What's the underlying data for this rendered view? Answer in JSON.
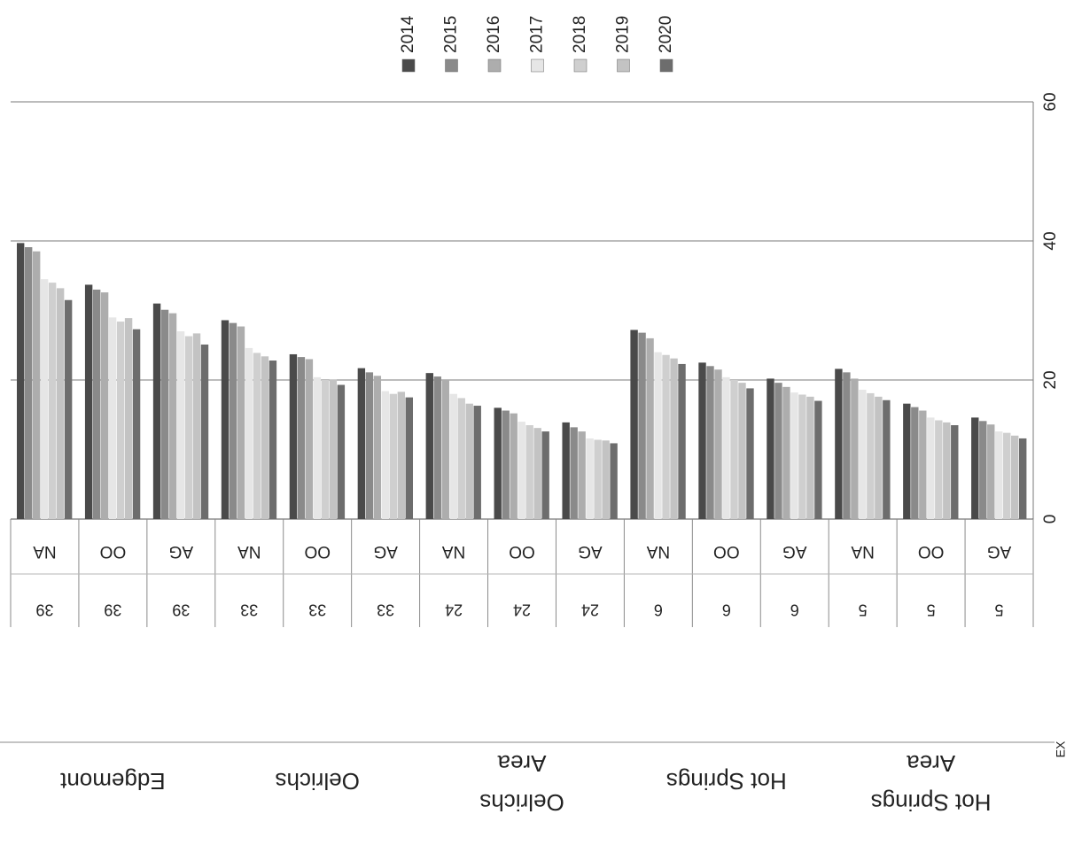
{
  "page_corner_text": "EX",
  "chart_data": {
    "type": "bar",
    "orientation": "vertical, image rotated 90 degrees",
    "title": "",
    "xlabel": "",
    "ylabel": "",
    "ylim": [
      0,
      60
    ],
    "y_ticks": [
      0,
      20,
      40,
      60
    ],
    "grid": true,
    "legend_placement": "top",
    "legend": [
      "2014",
      "2015",
      "2016",
      "2017",
      "2018",
      "2019",
      "2020"
    ],
    "colors": [
      "#4a4a4a",
      "#8a8a8a",
      "#adadad",
      "#e6e6e6",
      "#cfcfcf",
      "#c3c3c3",
      "#6d6d6d"
    ],
    "groups": [
      {
        "label": "Edgemont",
        "size": 3
      },
      {
        "label": "Oelrichs",
        "size": 3
      },
      {
        "label": "Oelrichs Area",
        "size": 3
      },
      {
        "label": "Hot Springs",
        "size": 3
      },
      {
        "label": "Hot Springs Area",
        "size": 3
      }
    ],
    "categories": [
      {
        "code": "NA",
        "value_label": "39"
      },
      {
        "code": "OO",
        "value_label": "39"
      },
      {
        "code": "AG",
        "value_label": "39"
      },
      {
        "code": "NA",
        "value_label": "33"
      },
      {
        "code": "OO",
        "value_label": "33"
      },
      {
        "code": "AG",
        "value_label": "33"
      },
      {
        "code": "NA",
        "value_label": "24"
      },
      {
        "code": "OO",
        "value_label": "24"
      },
      {
        "code": "AG",
        "value_label": "24"
      },
      {
        "code": "NA",
        "value_label": "6"
      },
      {
        "code": "OO",
        "value_label": "6"
      },
      {
        "code": "AG",
        "value_label": "6"
      },
      {
        "code": "NA",
        "value_label": "5"
      },
      {
        "code": "OO",
        "value_label": "5"
      },
      {
        "code": "AG",
        "value_label": "5"
      }
    ],
    "series": [
      {
        "name": "2014",
        "values": [
          39.7,
          33.7,
          31.0,
          28.6,
          23.7,
          21.7,
          21.0,
          16.0,
          13.9,
          27.2,
          22.5,
          20.2,
          21.6,
          16.6,
          14.6
        ]
      },
      {
        "name": "2015",
        "values": [
          39.1,
          33.0,
          30.1,
          28.2,
          23.3,
          21.1,
          20.5,
          15.6,
          13.2,
          26.8,
          22.0,
          19.6,
          21.1,
          16.1,
          14.1
        ]
      },
      {
        "name": "2016",
        "values": [
          38.5,
          32.6,
          29.6,
          27.7,
          23.0,
          20.6,
          20.0,
          15.2,
          12.6,
          26.0,
          21.5,
          19.0,
          20.2,
          15.6,
          13.6
        ]
      },
      {
        "name": "2017",
        "values": [
          34.5,
          29.0,
          27.0,
          24.6,
          20.4,
          18.4,
          18.0,
          14.0,
          11.6,
          24.0,
          20.4,
          18.2,
          18.6,
          14.6,
          12.6
        ]
      },
      {
        "name": "2018",
        "values": [
          34.0,
          28.4,
          26.3,
          23.9,
          20.0,
          18.0,
          17.4,
          13.5,
          11.4,
          23.6,
          20.0,
          17.9,
          18.1,
          14.2,
          12.4
        ]
      },
      {
        "name": "2019",
        "values": [
          33.2,
          28.9,
          26.7,
          23.4,
          20.1,
          18.3,
          16.6,
          13.1,
          11.3,
          23.1,
          19.6,
          17.6,
          17.6,
          13.9,
          12.0
        ]
      },
      {
        "name": "2020",
        "values": [
          31.5,
          27.3,
          25.1,
          22.8,
          19.3,
          17.5,
          16.3,
          12.6,
          10.9,
          22.3,
          18.8,
          17.0,
          17.1,
          13.5,
          11.6
        ]
      }
    ]
  }
}
